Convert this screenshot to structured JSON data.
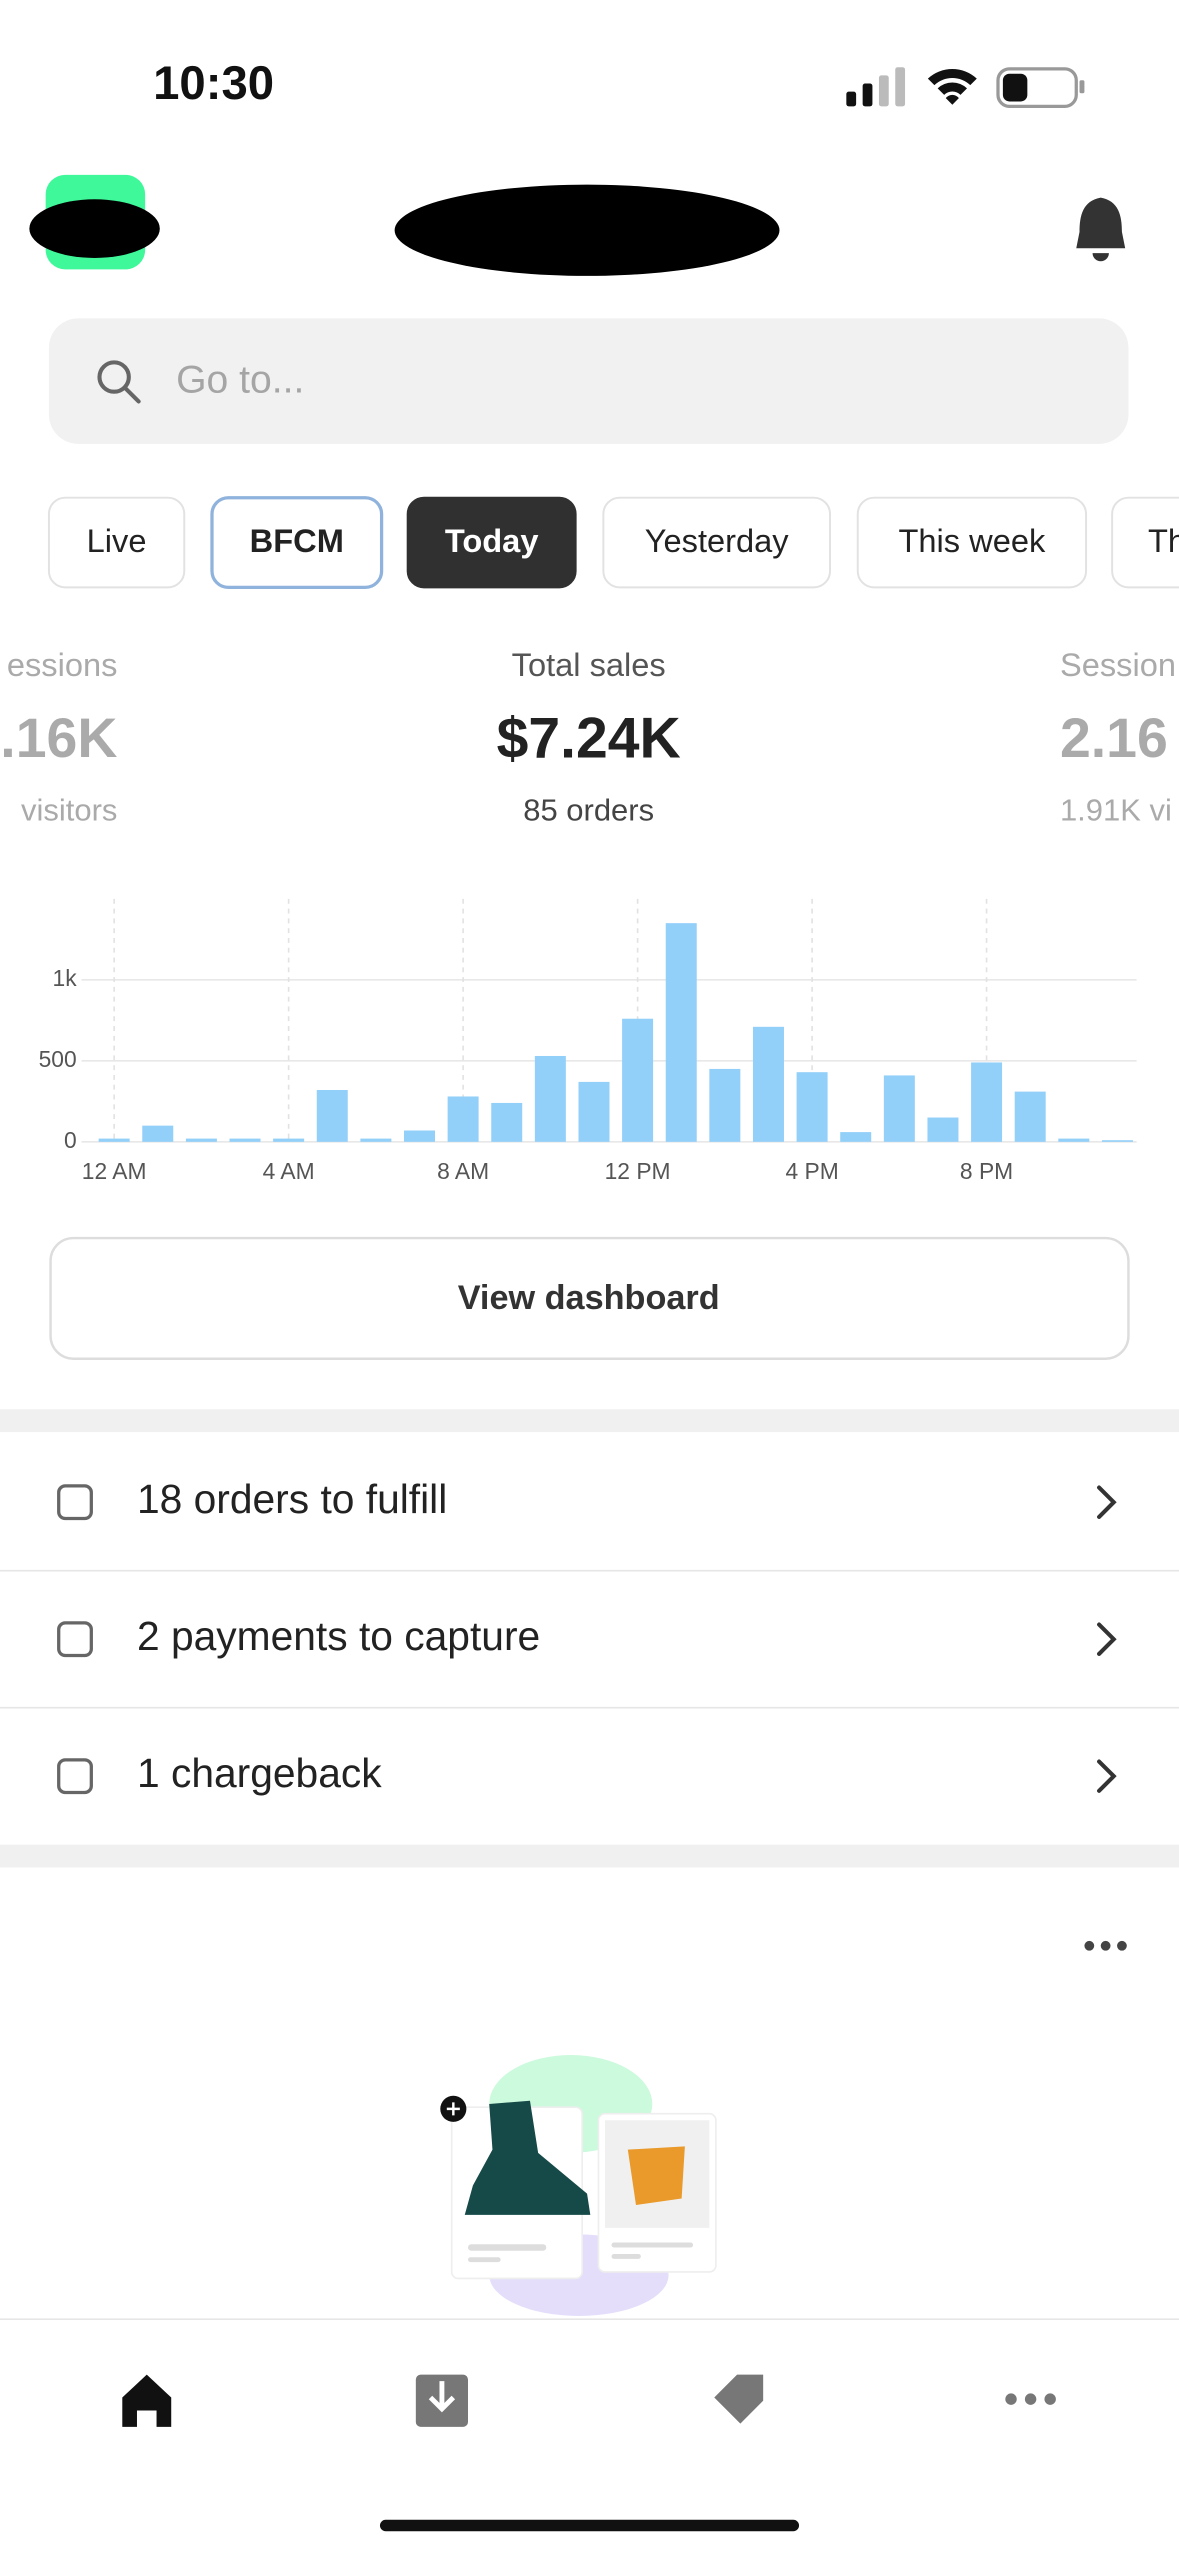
{
  "status_bar": {
    "time": "10:30"
  },
  "search": {
    "placeholder": "Go to..."
  },
  "tabs": [
    "Live",
    "BFCM",
    "Today",
    "Yesterday",
    "This week",
    "Th"
  ],
  "metrics": [
    {
      "label": "essions",
      "value": ".16K",
      "sub": "visitors"
    },
    {
      "label": "Total sales",
      "value": "$7.24K",
      "sub": "85 orders"
    },
    {
      "label": "Session",
      "value": "2.16",
      "sub": "1.91K vi"
    }
  ],
  "chart_data": {
    "type": "bar",
    "categories": [
      "12 AM",
      null,
      null,
      null,
      "4 AM",
      null,
      null,
      null,
      "8 AM",
      null,
      null,
      null,
      "12 PM",
      null,
      null,
      null,
      "4 PM",
      null,
      null,
      null,
      "8 PM",
      null,
      null,
      null
    ],
    "values": [
      20,
      100,
      20,
      20,
      20,
      320,
      20,
      70,
      280,
      240,
      530,
      370,
      760,
      1350,
      450,
      710,
      430,
      60,
      410,
      150,
      490,
      310,
      20,
      10
    ],
    "color": "#92cff9",
    "ylim": [
      0,
      1500
    ],
    "yticks": [
      0,
      500,
      {
        "value": 1000,
        "label": "1k"
      }
    ],
    "grid": true
  },
  "button": "View dashboard",
  "tasks": [
    "18 orders to fulfill",
    "2 payments to capture",
    "1 chargeback"
  ]
}
